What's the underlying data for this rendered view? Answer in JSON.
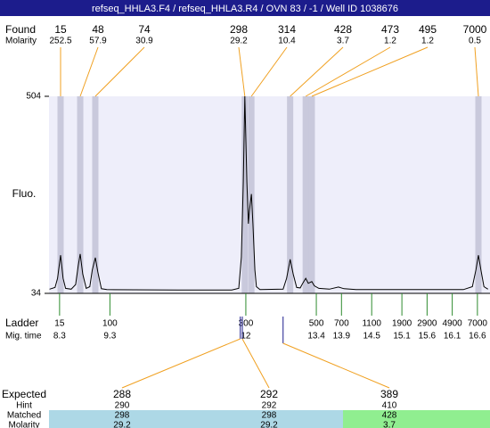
{
  "chart_data": {
    "type": "electropherogram",
    "title": "refseq_HHLA3.F4 / refseq_HHLA3.R4 / OVN 83 / -1 / Well ID 1038676",
    "found": {
      "label": "Found",
      "molarity_label": "Molarity",
      "sizes": [
        15,
        48,
        74,
        298,
        314,
        428,
        473,
        495,
        7000
      ],
      "molarity": [
        252.5,
        57.9,
        30.9,
        29.2,
        10.4,
        3.7,
        1.2,
        1.2,
        0.5
      ],
      "times": [
        8.32,
        8.71,
        9.01,
        11.98,
        12.11,
        12.88,
        13.19,
        13.31,
        16.62
      ]
    },
    "y_label": "Fluo.",
    "ylim": [
      34,
      504
    ],
    "yticks": [
      34,
      504
    ],
    "xlim": [
      8.09,
      16.85
    ],
    "trace": {
      "x": [
        8.1,
        8.21,
        8.26,
        8.32,
        8.37,
        8.42,
        8.53,
        8.62,
        8.67,
        8.71,
        8.76,
        8.83,
        8.9,
        8.95,
        9.01,
        9.06,
        9.13,
        9.24,
        10.65,
        11.72,
        11.86,
        11.91,
        11.95,
        11.98,
        12.02,
        12.05,
        12.07,
        12.11,
        12.14,
        12.18,
        12.21,
        12.28,
        12.74,
        12.81,
        12.88,
        12.94,
        13.01,
        13.08,
        13.13,
        13.19,
        13.24,
        13.31,
        13.36,
        13.45,
        13.66,
        13.84,
        13.95,
        14.19,
        16.32,
        16.5,
        16.57,
        16.62,
        16.67,
        16.73,
        16.81
      ],
      "y": [
        44,
        48,
        70,
        125,
        70,
        46,
        44,
        55,
        100,
        128,
        80,
        46,
        50,
        90,
        119,
        85,
        45,
        43,
        42,
        42,
        46,
        120,
        300,
        504,
        300,
        200,
        230,
        271,
        200,
        90,
        50,
        43,
        44,
        70,
        115,
        80,
        48,
        47,
        58,
        70,
        58,
        62,
        52,
        46,
        44,
        49,
        45,
        43,
        43,
        50,
        90,
        125,
        90,
        50,
        44
      ]
    },
    "ladder": {
      "label": "Ladder",
      "time_label": "Mig. time",
      "sizes": [
        15,
        100,
        300,
        500,
        700,
        1100,
        1900,
        2900,
        4900,
        7000
      ],
      "times": [
        8.3,
        9.3,
        12,
        13.4,
        13.9,
        14.5,
        15.1,
        15.6,
        16.1,
        16.6
      ]
    },
    "expected": {
      "labels": [
        "Expected",
        "Hint",
        "Matched",
        "Molarity"
      ],
      "sizes": [
        288,
        292,
        389
      ],
      "hint": [
        290,
        292,
        410
      ],
      "matched": [
        298,
        298,
        428
      ],
      "molarity": [
        29.2,
        29.2,
        3.7
      ],
      "times": [
        11.89,
        11.93,
        12.74
      ],
      "colors": [
        "#add8e6",
        "#add8e6",
        "#90ee90"
      ]
    }
  }
}
